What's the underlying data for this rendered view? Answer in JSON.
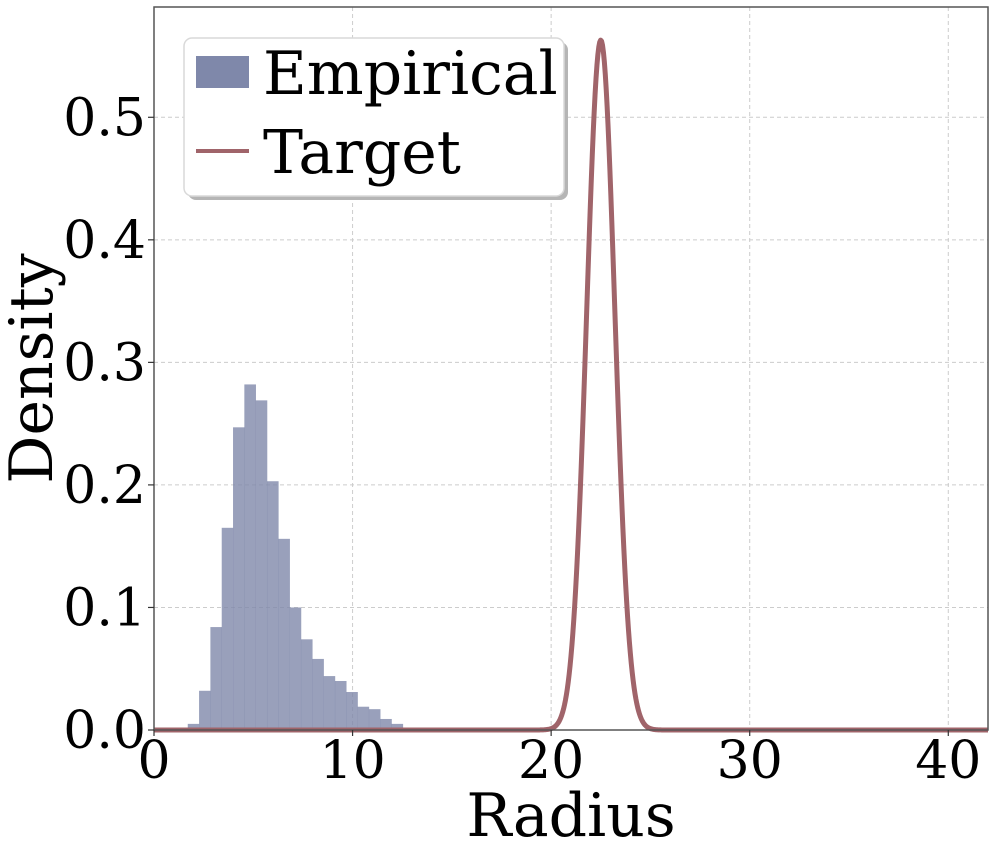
{
  "chart_data": {
    "type": "bar",
    "title": "",
    "xlabel": "Radius",
    "ylabel": "Density",
    "xlim": [
      0,
      42
    ],
    "ylim": [
      0,
      0.59
    ],
    "grid": true,
    "x_ticks": [
      0,
      10,
      20,
      30,
      40
    ],
    "y_ticks": [
      0.0,
      0.1,
      0.2,
      0.3,
      0.4,
      0.5
    ],
    "x_tick_labels": [
      "0",
      "10",
      "20",
      "30",
      "40"
    ],
    "y_tick_labels": [
      "0.0",
      "0.1",
      "0.2",
      "0.3",
      "0.4",
      "0.5"
    ],
    "legend": {
      "placement": "upper-left",
      "entries": [
        {
          "label": "Empirical",
          "kind": "patch",
          "color": "#7f88aa"
        },
        {
          "label": "Target",
          "kind": "line",
          "color": "#a0646a"
        }
      ]
    },
    "series": [
      {
        "name": "Empirical",
        "type": "histogram",
        "color": "#7f88aa",
        "bin_width": 0.57,
        "bins": [
          {
            "x": 1.7,
            "y": 0.005
          },
          {
            "x": 2.27,
            "y": 0.032
          },
          {
            "x": 2.84,
            "y": 0.084
          },
          {
            "x": 3.41,
            "y": 0.165
          },
          {
            "x": 3.98,
            "y": 0.247
          },
          {
            "x": 4.55,
            "y": 0.282
          },
          {
            "x": 5.12,
            "y": 0.269
          },
          {
            "x": 5.69,
            "y": 0.203
          },
          {
            "x": 6.26,
            "y": 0.156
          },
          {
            "x": 6.83,
            "y": 0.1
          },
          {
            "x": 7.4,
            "y": 0.074
          },
          {
            "x": 7.97,
            "y": 0.058
          },
          {
            "x": 8.54,
            "y": 0.044
          },
          {
            "x": 9.11,
            "y": 0.04
          },
          {
            "x": 9.68,
            "y": 0.031
          },
          {
            "x": 10.25,
            "y": 0.019
          },
          {
            "x": 10.82,
            "y": 0.017
          },
          {
            "x": 11.39,
            "y": 0.009
          },
          {
            "x": 11.96,
            "y": 0.005
          },
          {
            "x": 12.53,
            "y": 0.002
          },
          {
            "x": 13.1,
            "y": 0.001
          }
        ]
      },
      {
        "name": "Target",
        "type": "line",
        "color": "#a0646a",
        "distribution": {
          "kind": "normal",
          "mean": 22.5,
          "std": 0.71
        },
        "peak": 0.563
      }
    ]
  }
}
